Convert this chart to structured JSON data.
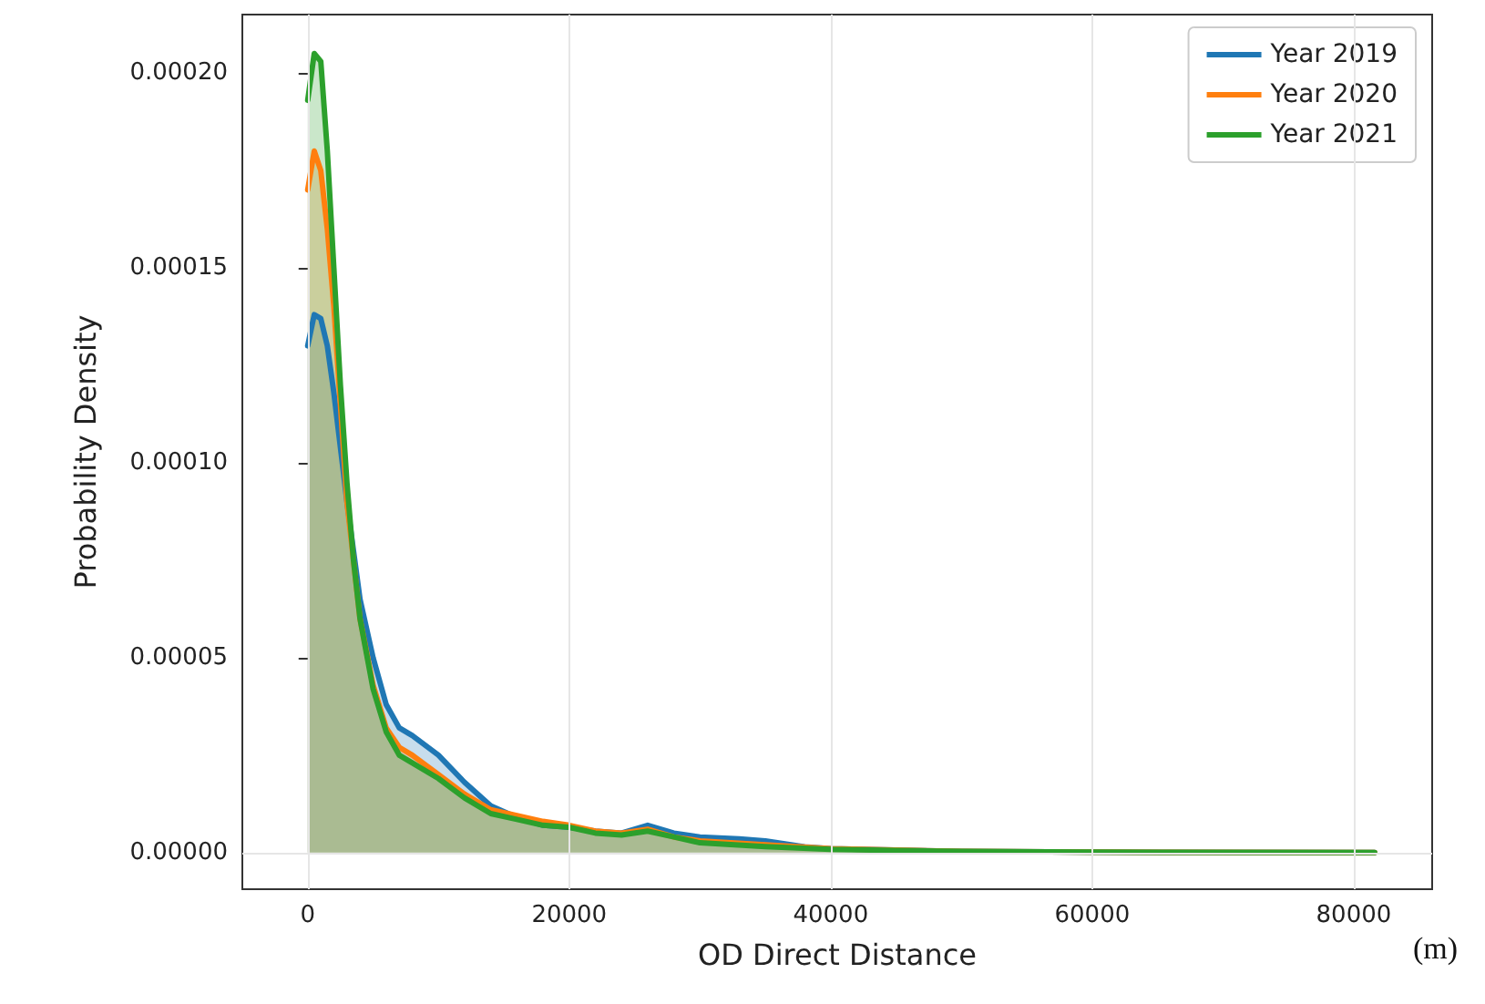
{
  "chart_data": {
    "type": "area",
    "xlabel": "OD Direct Distance",
    "ylabel": "Probability Density",
    "annotations": [
      "(m)"
    ],
    "xlim": [
      -5000,
      86000
    ],
    "xticks": [
      0,
      20000,
      40000,
      60000,
      80000
    ],
    "ylim": [
      -9.4e-06,
      0.000215
    ],
    "yticks": [
      {
        "value": 0,
        "label": "0.00000"
      },
      {
        "value": 5e-05,
        "label": "0.00005"
      },
      {
        "value": 0.0001,
        "label": "0.00010"
      },
      {
        "value": 0.00015,
        "label": "0.00015"
      },
      {
        "value": 0.0002,
        "label": "0.00020"
      }
    ],
    "grid": true,
    "legend": "top right",
    "series": [
      {
        "name": "Year 2019",
        "color": "#1f77b4",
        "x": [
          0,
          500,
          1000,
          1500,
          2000,
          3000,
          4000,
          5000,
          6000,
          7000,
          8000,
          10000,
          12000,
          14000,
          16000,
          18000,
          20000,
          22000,
          24000,
          26000,
          28000,
          30000,
          33000,
          35000,
          38000,
          40000,
          50000,
          60000,
          81600
        ],
        "values": [
          0.00013,
          0.000138,
          0.000137,
          0.00013,
          0.000118,
          9e-05,
          6.5e-05,
          5e-05,
          3.8e-05,
          3.2e-05,
          3e-05,
          2.5e-05,
          1.8e-05,
          1.2e-05,
          9e-06,
          7e-06,
          6.5e-06,
          5.5e-06,
          5e-06,
          7e-06,
          5e-06,
          4e-06,
          3.5e-06,
          3e-06,
          1.5e-06,
          1e-06,
          3e-07,
          1e-07,
          0
        ]
      },
      {
        "name": "Year 2020",
        "color": "#ff7f0e",
        "x": [
          0,
          500,
          1000,
          1500,
          2000,
          3000,
          4000,
          5000,
          6000,
          7000,
          8000,
          10000,
          12000,
          14000,
          16000,
          18000,
          20000,
          22000,
          24000,
          26000,
          28000,
          30000,
          35000,
          40000,
          50000,
          60000,
          81600
        ],
        "values": [
          0.00017,
          0.00018,
          0.000175,
          0.00016,
          0.00014,
          9e-05,
          6e-05,
          4.3e-05,
          3.2e-05,
          2.7e-05,
          2.5e-05,
          2e-05,
          1.5e-05,
          1.1e-05,
          9.5e-06,
          8e-06,
          7e-06,
          5.5e-06,
          5e-06,
          6e-06,
          4e-06,
          3e-06,
          2e-06,
          1e-06,
          3e-07,
          1e-07,
          0
        ]
      },
      {
        "name": "Year 2021",
        "color": "#2ca02c",
        "x": [
          0,
          500,
          1000,
          1500,
          2000,
          2500,
          3000,
          3500,
          4000,
          5000,
          6000,
          7000,
          8000,
          10000,
          12000,
          14000,
          16000,
          18000,
          20000,
          22000,
          24000,
          26000,
          28000,
          30000,
          35000,
          40000,
          50000,
          60000,
          81600
        ],
        "values": [
          0.000193,
          0.000205,
          0.000203,
          0.00018,
          0.00015,
          0.00012,
          9.5e-05,
          7.5e-05,
          6e-05,
          4.2e-05,
          3.1e-05,
          2.5e-05,
          2.3e-05,
          1.9e-05,
          1.4e-05,
          1e-05,
          8.5e-06,
          7e-06,
          6.5e-06,
          5e-06,
          4.5e-06,
          5.5e-06,
          4e-06,
          2.5e-06,
          1.5e-06,
          8e-07,
          3e-07,
          1e-07,
          0
        ]
      }
    ]
  }
}
